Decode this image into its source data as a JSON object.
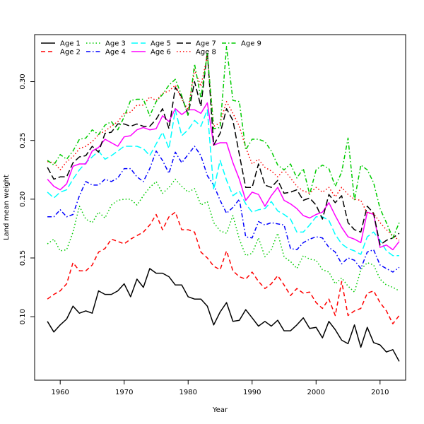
{
  "chart_data": {
    "type": "line",
    "title": "",
    "xlabel": "Year",
    "ylabel": "Land mean weight",
    "xlim": [
      1956,
      2014
    ],
    "ylim": [
      0.046,
      0.34
    ],
    "xticks": [
      1960,
      1970,
      1980,
      1990,
      2000,
      2010
    ],
    "yticks": [
      0.1,
      0.15,
      0.2,
      0.25,
      0.3
    ],
    "ytick_labels": [
      "0.10",
      "0.15",
      "0.20",
      "0.25",
      "0.30"
    ],
    "grid": false,
    "legend": {
      "placement": "top-left",
      "columns": 5
    },
    "x": [
      1958,
      1959,
      1960,
      1961,
      1962,
      1963,
      1964,
      1965,
      1966,
      1967,
      1968,
      1969,
      1970,
      1971,
      1972,
      1973,
      1974,
      1975,
      1976,
      1977,
      1978,
      1979,
      1980,
      1981,
      1982,
      1983,
      1984,
      1985,
      1986,
      1987,
      1988,
      1989,
      1990,
      1991,
      1992,
      1993,
      1994,
      1995,
      1996,
      1997,
      1998,
      1999,
      2000,
      2001,
      2002,
      2003,
      2004,
      2005,
      2006,
      2007,
      2008,
      2009,
      2010,
      2011,
      2012,
      2013
    ],
    "series": [
      {
        "name": "Age 1",
        "color": "#000000",
        "dash": "solid",
        "values": [
          0.096,
          0.087,
          0.093,
          0.098,
          0.109,
          0.103,
          0.105,
          0.103,
          0.122,
          0.119,
          0.119,
          0.122,
          0.128,
          0.117,
          0.132,
          0.125,
          0.141,
          0.137,
          0.137,
          0.134,
          0.127,
          0.127,
          0.117,
          0.115,
          0.115,
          0.109,
          0.093,
          0.104,
          0.112,
          0.096,
          0.097,
          0.106,
          0.099,
          0.092,
          0.096,
          0.092,
          0.097,
          0.088,
          0.088,
          0.093,
          0.099,
          0.09,
          0.091,
          0.082,
          0.096,
          0.089,
          0.08,
          0.077,
          0.093,
          0.074,
          0.091,
          0.078,
          0.076,
          0.07,
          0.072,
          0.062
        ]
      },
      {
        "name": "Age 2",
        "color": "#ff0000",
        "dash": "dashed",
        "values": [
          0.115,
          0.119,
          0.122,
          0.128,
          0.146,
          0.139,
          0.139,
          0.144,
          0.155,
          0.158,
          0.166,
          0.164,
          0.162,
          0.166,
          0.169,
          0.172,
          0.178,
          0.187,
          0.174,
          0.185,
          0.189,
          0.174,
          0.174,
          0.172,
          0.155,
          0.15,
          0.143,
          0.14,
          0.156,
          0.139,
          0.134,
          0.132,
          0.138,
          0.13,
          0.124,
          0.128,
          0.135,
          0.127,
          0.118,
          0.124,
          0.12,
          0.121,
          0.112,
          0.107,
          0.115,
          0.101,
          0.13,
          0.101,
          0.105,
          0.107,
          0.12,
          0.122,
          0.112,
          0.105,
          0.094,
          0.101
        ]
      },
      {
        "name": "Age 3",
        "color": "#00cc00",
        "dash": "dotted",
        "values": [
          0.162,
          0.166,
          0.156,
          0.157,
          0.172,
          0.194,
          0.183,
          0.18,
          0.189,
          0.184,
          0.195,
          0.199,
          0.2,
          0.2,
          0.195,
          0.203,
          0.21,
          0.215,
          0.205,
          0.21,
          0.217,
          0.211,
          0.206,
          0.209,
          0.195,
          0.198,
          0.18,
          0.173,
          0.171,
          0.186,
          0.166,
          0.152,
          0.154,
          0.167,
          0.151,
          0.157,
          0.171,
          0.151,
          0.147,
          0.141,
          0.152,
          0.149,
          0.148,
          0.14,
          0.138,
          0.128,
          0.133,
          0.126,
          0.121,
          0.14,
          0.146,
          0.144,
          0.132,
          0.127,
          0.125,
          0.122
        ]
      },
      {
        "name": "Age 4",
        "color": "#0000ff",
        "dash": "dashdot",
        "values": [
          0.185,
          0.185,
          0.191,
          0.185,
          0.187,
          0.203,
          0.215,
          0.212,
          0.212,
          0.217,
          0.215,
          0.218,
          0.226,
          0.226,
          0.219,
          0.215,
          0.226,
          0.241,
          0.233,
          0.222,
          0.24,
          0.231,
          0.238,
          0.245,
          0.237,
          0.22,
          0.212,
          0.199,
          0.188,
          0.193,
          0.2,
          0.168,
          0.167,
          0.181,
          0.178,
          0.18,
          0.179,
          0.178,
          0.158,
          0.157,
          0.163,
          0.166,
          0.168,
          0.167,
          0.159,
          0.155,
          0.145,
          0.15,
          0.148,
          0.141,
          0.155,
          0.157,
          0.144,
          0.141,
          0.138,
          0.142
        ]
      },
      {
        "name": "Age 5",
        "color": "#00ffff",
        "dash": "longdash",
        "values": [
          0.206,
          0.201,
          0.206,
          0.208,
          0.217,
          0.225,
          0.231,
          0.236,
          0.241,
          0.234,
          0.237,
          0.241,
          0.245,
          0.245,
          0.245,
          0.243,
          0.237,
          0.247,
          0.257,
          0.243,
          0.276,
          0.254,
          0.259,
          0.267,
          0.262,
          0.276,
          0.208,
          0.233,
          0.216,
          0.203,
          0.207,
          0.196,
          0.189,
          0.191,
          0.192,
          0.198,
          0.19,
          0.187,
          0.183,
          0.172,
          0.172,
          0.178,
          0.185,
          0.185,
          0.182,
          0.17,
          0.162,
          0.158,
          0.156,
          0.153,
          0.168,
          0.172,
          0.165,
          0.156,
          0.152,
          0.152
        ]
      },
      {
        "name": "Age 6",
        "color": "#ff00ff",
        "dash": "solid",
        "values": [
          0.217,
          0.211,
          0.208,
          0.213,
          0.228,
          0.23,
          0.23,
          0.241,
          0.244,
          0.251,
          0.248,
          0.245,
          0.253,
          0.254,
          0.259,
          0.261,
          0.259,
          0.26,
          0.271,
          0.266,
          0.277,
          0.272,
          0.276,
          0.276,
          0.273,
          0.282,
          0.246,
          0.248,
          0.248,
          0.231,
          0.217,
          0.199,
          0.206,
          0.204,
          0.194,
          0.203,
          0.21,
          0.199,
          0.196,
          0.192,
          0.186,
          0.184,
          0.187,
          0.189,
          0.197,
          0.186,
          0.176,
          0.168,
          0.166,
          0.163,
          0.189,
          0.187,
          0.159,
          0.161,
          0.157,
          0.164
        ]
      },
      {
        "name": "Age 7",
        "color": "#000000",
        "dash": "longdash",
        "values": [
          0.227,
          0.217,
          0.219,
          0.219,
          0.231,
          0.236,
          0.237,
          0.245,
          0.24,
          0.256,
          0.257,
          0.264,
          0.264,
          0.262,
          0.264,
          0.262,
          0.262,
          0.268,
          0.277,
          0.26,
          0.295,
          0.287,
          0.272,
          0.3,
          0.279,
          0.325,
          0.246,
          0.256,
          0.277,
          0.267,
          0.238,
          0.21,
          0.21,
          0.23,
          0.212,
          0.21,
          0.216,
          0.205,
          0.206,
          0.208,
          0.199,
          0.201,
          0.195,
          0.183,
          0.204,
          0.197,
          0.203,
          0.18,
          0.174,
          0.172,
          0.194,
          0.188,
          0.161,
          0.165,
          0.167,
          0.171
        ]
      },
      {
        "name": "Age 8",
        "color": "#ff0000",
        "dash": "dotted",
        "values": [
          0.232,
          0.231,
          0.225,
          0.232,
          0.236,
          0.243,
          0.245,
          0.249,
          0.255,
          0.258,
          0.262,
          0.266,
          0.273,
          0.274,
          0.28,
          0.28,
          0.287,
          0.284,
          0.29,
          0.292,
          0.297,
          0.285,
          0.276,
          0.31,
          0.296,
          0.322,
          0.262,
          0.265,
          0.283,
          0.273,
          0.262,
          0.244,
          0.23,
          0.234,
          0.227,
          0.224,
          0.219,
          0.225,
          0.218,
          0.211,
          0.207,
          0.205,
          0.21,
          0.206,
          0.21,
          0.202,
          0.21,
          0.204,
          0.2,
          0.199,
          0.188,
          0.188,
          0.18,
          0.174,
          0.169,
          0.165
        ]
      },
      {
        "name": "Age 9",
        "color": "#00cc00",
        "dash": "dashdot",
        "values": [
          0.233,
          0.229,
          0.238,
          0.234,
          0.241,
          0.251,
          0.252,
          0.259,
          0.255,
          0.263,
          0.266,
          0.259,
          0.27,
          0.284,
          0.285,
          0.285,
          0.271,
          0.283,
          0.289,
          0.297,
          0.302,
          0.288,
          0.271,
          0.315,
          0.286,
          0.324,
          0.26,
          0.261,
          0.33,
          0.284,
          0.283,
          0.242,
          0.251,
          0.251,
          0.249,
          0.241,
          0.229,
          0.225,
          0.23,
          0.218,
          0.226,
          0.204,
          0.225,
          0.229,
          0.226,
          0.211,
          0.223,
          0.252,
          0.199,
          0.229,
          0.225,
          0.214,
          0.192,
          0.18,
          0.167,
          0.18
        ]
      }
    ]
  }
}
